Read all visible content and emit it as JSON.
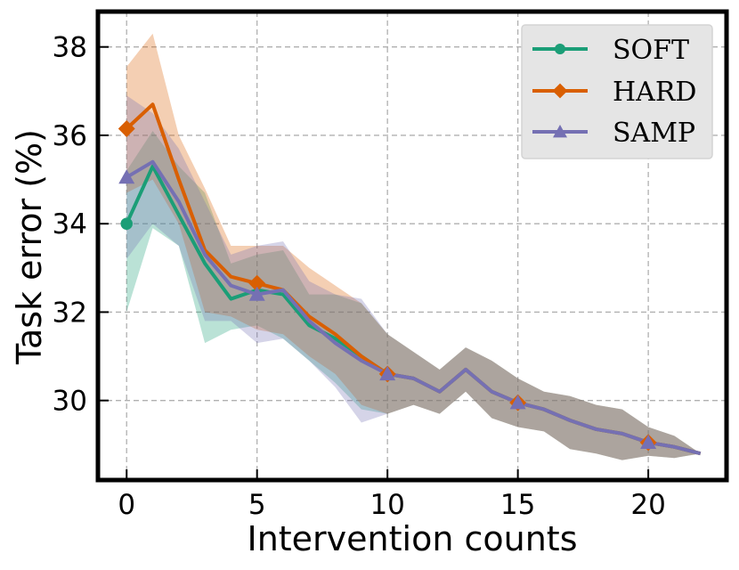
{
  "chart_data": {
    "type": "line",
    "title": "",
    "xlabel": "Intervention counts",
    "ylabel": "Task error (%)",
    "xlim": [
      -1.1,
      23.0
    ],
    "ylim": [
      28.2,
      38.8
    ],
    "xticks": [
      0,
      5,
      10,
      15,
      20
    ],
    "yticks": [
      30,
      32,
      34,
      36,
      38
    ],
    "xtick_labels": [
      "0",
      "5",
      "10",
      "15",
      "20"
    ],
    "ytick_labels": [
      "30",
      "32",
      "34",
      "36",
      "38"
    ],
    "grid": true,
    "legend_position": "top-right",
    "x": [
      0,
      1,
      2,
      3,
      4,
      5,
      6,
      7,
      8,
      9,
      10,
      11,
      12,
      13,
      14,
      15,
      16,
      17,
      18,
      19,
      20,
      21,
      22
    ],
    "series": [
      {
        "name": "SOFT",
        "color": "#1b9e77",
        "marker": "circle",
        "marker_x": [
          0
        ],
        "mean": [
          34.0,
          35.3,
          34.2,
          33.1,
          32.3,
          32.5,
          32.4,
          31.7,
          31.4,
          31.0,
          30.6,
          30.5,
          30.2,
          30.7,
          30.2,
          29.95,
          29.8,
          29.55,
          29.35,
          29.25,
          29.05,
          28.95,
          28.8
        ],
        "lower": [
          32.0,
          33.9,
          33.5,
          31.3,
          31.6,
          31.7,
          31.4,
          30.9,
          30.4,
          29.8,
          29.7,
          29.9,
          29.7,
          30.2,
          29.6,
          29.4,
          29.3,
          28.9,
          28.8,
          28.65,
          28.75,
          28.7,
          28.8
        ],
        "upper": [
          35.2,
          36.1,
          35.3,
          34.7,
          33.1,
          33.3,
          33.4,
          32.4,
          32.4,
          32.2,
          31.5,
          31.1,
          30.7,
          31.2,
          30.9,
          30.5,
          30.2,
          30.1,
          29.9,
          29.8,
          29.4,
          29.2,
          28.8
        ]
      },
      {
        "name": "HARD",
        "color": "#d95f02",
        "marker": "diamond",
        "marker_x": [
          0,
          5,
          10,
          15,
          20
        ],
        "mean": [
          36.15,
          36.7,
          35.0,
          33.4,
          32.8,
          32.65,
          32.5,
          31.9,
          31.5,
          31.0,
          30.6,
          30.5,
          30.2,
          30.7,
          30.2,
          29.95,
          29.8,
          29.55,
          29.35,
          29.25,
          29.05,
          28.95,
          28.8
        ],
        "lower": [
          34.7,
          35.0,
          34.0,
          32.0,
          31.9,
          31.6,
          31.5,
          31.0,
          30.6,
          29.9,
          29.7,
          29.9,
          29.7,
          30.2,
          29.6,
          29.4,
          29.3,
          28.9,
          28.8,
          28.65,
          28.75,
          28.7,
          28.8
        ],
        "upper": [
          37.55,
          38.3,
          36.0,
          34.8,
          33.5,
          33.5,
          33.5,
          33.0,
          32.6,
          32.2,
          31.5,
          31.1,
          30.7,
          31.2,
          30.9,
          30.5,
          30.2,
          30.1,
          29.9,
          29.8,
          29.4,
          29.2,
          28.8
        ]
      },
      {
        "name": "SAMP",
        "color": "#7570b3",
        "marker": "triangle",
        "marker_x": [
          0,
          5,
          10,
          15,
          20
        ],
        "mean": [
          35.05,
          35.4,
          34.5,
          33.3,
          32.6,
          32.4,
          32.5,
          31.8,
          31.3,
          30.9,
          30.6,
          30.5,
          30.2,
          30.7,
          30.2,
          29.95,
          29.8,
          29.55,
          29.35,
          29.25,
          29.05,
          28.95,
          28.8
        ],
        "lower": [
          33.2,
          34.0,
          33.5,
          31.8,
          31.8,
          31.3,
          31.4,
          30.9,
          30.3,
          29.5,
          29.7,
          29.9,
          29.7,
          30.2,
          29.6,
          29.4,
          29.3,
          28.9,
          28.8,
          28.65,
          28.75,
          28.7,
          28.8
        ],
        "upper": [
          36.9,
          36.5,
          35.7,
          34.5,
          33.3,
          33.5,
          33.6,
          32.7,
          32.4,
          32.3,
          31.5,
          31.1,
          30.7,
          31.2,
          30.9,
          30.5,
          30.2,
          30.1,
          29.9,
          29.8,
          29.4,
          29.2,
          28.8
        ]
      }
    ]
  }
}
